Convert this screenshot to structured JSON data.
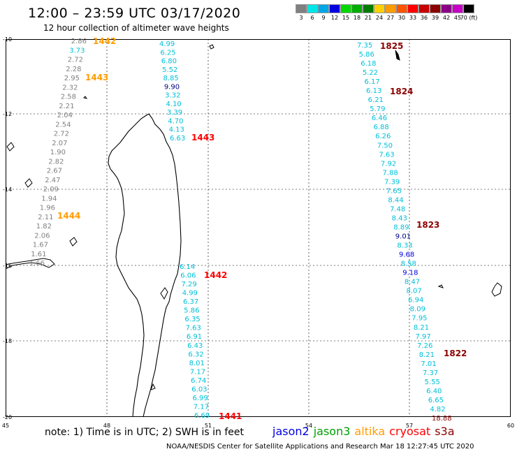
{
  "header": {
    "title": "12:00 – 23:59 UTC 03/17/2020",
    "subtitle": "12 hour collection of altimeter wave heights"
  },
  "color_scale": {
    "labels": [
      "3",
      "6",
      "9",
      "12",
      "15",
      "18",
      "21",
      "24",
      "27",
      "30",
      "33",
      "36",
      "39",
      "42",
      "45",
      "70 (ft)"
    ],
    "colors": [
      "#808080",
      "#00e5e5",
      "#00a6e8",
      "#0000e0",
      "#00d800",
      "#00ae00",
      "#007d00",
      "#ffd000",
      "#ff9c00",
      "#ff5400",
      "#ff0000",
      "#c80000",
      "#8c0000",
      "#8c0088",
      "#c800c8",
      "#000000"
    ]
  },
  "map": {
    "lon_ticks": [
      "45",
      "48",
      "51",
      "54",
      "57",
      "60"
    ],
    "lat_ticks": [
      "-10",
      "-12",
      "-14",
      "-16",
      "-18",
      "-20"
    ]
  },
  "tracks": [
    {
      "id": "west",
      "points": [
        {
          "v": "2.86",
          "c": "#808080"
        },
        {
          "v": "3.73",
          "c": "#00c0d8"
        },
        {
          "v": "2.72",
          "c": "#808080"
        },
        {
          "v": "2.28",
          "c": "#808080"
        },
        {
          "v": "2.95",
          "c": "#808080"
        },
        {
          "v": "2.32",
          "c": "#808080"
        },
        {
          "v": "2.58",
          "c": "#808080"
        },
        {
          "v": "2.21",
          "c": "#808080"
        },
        {
          "v": "2.04",
          "c": "#808080"
        },
        {
          "v": "2.54",
          "c": "#808080"
        },
        {
          "v": "2.72",
          "c": "#808080"
        },
        {
          "v": "2.07",
          "c": "#808080"
        },
        {
          "v": "1.90",
          "c": "#808080"
        },
        {
          "v": "2.82",
          "c": "#808080"
        },
        {
          "v": "2.67",
          "c": "#808080"
        },
        {
          "v": "2.47",
          "c": "#808080"
        },
        {
          "v": "2.09",
          "c": "#808080"
        },
        {
          "v": "1.94",
          "c": "#808080"
        },
        {
          "v": "1.96",
          "c": "#808080"
        },
        {
          "v": "2.11",
          "c": "#808080"
        },
        {
          "v": "1.82",
          "c": "#808080"
        },
        {
          "v": "2.06",
          "c": "#808080"
        },
        {
          "v": "1.67",
          "c": "#808080"
        },
        {
          "v": "1.61",
          "c": "#808080"
        },
        {
          "v": "1.66",
          "c": "#808080"
        }
      ]
    },
    {
      "id": "north-mid",
      "points": [
        {
          "v": "4.99",
          "c": "#00c0d8"
        },
        {
          "v": "6.25",
          "c": "#00c0d8"
        },
        {
          "v": "6.80",
          "c": "#00c0d8"
        },
        {
          "v": "5.52",
          "c": "#00c0d8"
        },
        {
          "v": "8.85",
          "c": "#00c0d8"
        },
        {
          "v": "9.90",
          "c": "#000080"
        },
        {
          "v": "3.32",
          "c": "#00c0d8"
        },
        {
          "v": "4.10",
          "c": "#00c0d8"
        },
        {
          "v": "3.39",
          "c": "#00c0d8"
        },
        {
          "v": "4.70",
          "c": "#00c0d8"
        },
        {
          "v": "4.13",
          "c": "#00c0d8"
        },
        {
          "v": "6.63",
          "c": "#00c0d8"
        }
      ]
    },
    {
      "id": "south-mid",
      "points": [
        {
          "v": "6.14",
          "c": "#00c0d8"
        },
        {
          "v": "6.06",
          "c": "#00c0d8"
        },
        {
          "v": "7.29",
          "c": "#00c0d8"
        },
        {
          "v": "4.99",
          "c": "#00c0d8"
        },
        {
          "v": "6.37",
          "c": "#00c0d8"
        },
        {
          "v": "5.86",
          "c": "#00c0d8"
        },
        {
          "v": "6.35",
          "c": "#00c0d8"
        },
        {
          "v": "7.63",
          "c": "#00c0d8"
        },
        {
          "v": "6.91",
          "c": "#00c0d8"
        },
        {
          "v": "6.43",
          "c": "#00c0d8"
        },
        {
          "v": "6.32",
          "c": "#00c0d8"
        },
        {
          "v": "8.01",
          "c": "#00c0d8"
        },
        {
          "v": "7.17",
          "c": "#00c0d8"
        },
        {
          "v": "6.74",
          "c": "#00c0d8"
        },
        {
          "v": "6.03",
          "c": "#00c0d8"
        },
        {
          "v": "6.99",
          "c": "#00c0d8"
        },
        {
          "v": "7.17",
          "c": "#00c0d8"
        },
        {
          "v": "6.69",
          "c": "#00c0d8"
        }
      ]
    },
    {
      "id": "east",
      "points": [
        {
          "v": "7.35",
          "c": "#00c0d8"
        },
        {
          "v": "5.86",
          "c": "#00c0d8"
        },
        {
          "v": "6.18",
          "c": "#00c0d8"
        },
        {
          "v": "5.22",
          "c": "#00c0d8"
        },
        {
          "v": "6.17",
          "c": "#00c0d8"
        },
        {
          "v": "6.13",
          "c": "#00c0d8"
        },
        {
          "v": "6.21",
          "c": "#00c0d8"
        },
        {
          "v": "5.79",
          "c": "#00c0d8"
        },
        {
          "v": "6.46",
          "c": "#00c0d8"
        },
        {
          "v": "6.88",
          "c": "#00c0d8"
        },
        {
          "v": "6.26",
          "c": "#00c0d8"
        },
        {
          "v": "7.50",
          "c": "#00c0d8"
        },
        {
          "v": "7.63",
          "c": "#00c0d8"
        },
        {
          "v": "7.92",
          "c": "#00c0d8"
        },
        {
          "v": "7.88",
          "c": "#00c0d8"
        },
        {
          "v": "7.39",
          "c": "#00c0d8"
        },
        {
          "v": "7.65",
          "c": "#00c0d8"
        },
        {
          "v": "8.44",
          "c": "#00c0d8"
        },
        {
          "v": "7.48",
          "c": "#00c0d8"
        },
        {
          "v": "8.43",
          "c": "#00c0d8"
        },
        {
          "v": "8.89",
          "c": "#00c0d8"
        },
        {
          "v": "9.01",
          "c": "#000080"
        },
        {
          "v": "8.33",
          "c": "#00c0d8"
        },
        {
          "v": "9.68",
          "c": "#0000e0"
        },
        {
          "v": "8.58",
          "c": "#00c0d8"
        },
        {
          "v": "9.18",
          "c": "#0000e0"
        },
        {
          "v": "8.47",
          "c": "#00c0d8"
        },
        {
          "v": "8.07",
          "c": "#00c0d8"
        },
        {
          "v": "6.94",
          "c": "#00c0d8"
        },
        {
          "v": "8.09",
          "c": "#00c0d8"
        },
        {
          "v": "7.95",
          "c": "#00c0d8"
        },
        {
          "v": "8.21",
          "c": "#00c0d8"
        },
        {
          "v": "7.97",
          "c": "#00c0d8"
        },
        {
          "v": "7.26",
          "c": "#00c0d8"
        },
        {
          "v": "8.21",
          "c": "#00c0d8"
        },
        {
          "v": "7.01",
          "c": "#00c0d8"
        },
        {
          "v": "7.37",
          "c": "#00c0d8"
        },
        {
          "v": "5.55",
          "c": "#00c0d8"
        },
        {
          "v": "6.40",
          "c": "#00c0d8"
        },
        {
          "v": "6.65",
          "c": "#00c0d8"
        },
        {
          "v": "4.82",
          "c": "#00c0d8"
        },
        {
          "v": "18.88",
          "c": "#8c0000"
        }
      ]
    }
  ],
  "time_labels": [
    {
      "t": "1442",
      "c": "#ff9c00"
    },
    {
      "t": "1443",
      "c": "#ff9c00"
    },
    {
      "t": "1444",
      "c": "#ff9c00"
    },
    {
      "t": "1443",
      "c": "#ff0000"
    },
    {
      "t": "1442",
      "c": "#ff0000"
    },
    {
      "t": "1441",
      "c": "#ff0000"
    },
    {
      "t": "1825",
      "c": "#8c0000"
    },
    {
      "t": "1824",
      "c": "#8c0000"
    },
    {
      "t": "1823",
      "c": "#8c0000"
    },
    {
      "t": "1822",
      "c": "#8c0000"
    }
  ],
  "footer": {
    "note": "note:  1) Time is in UTC; 2) SWH is in feet",
    "satellites": [
      {
        "name": "jason2",
        "color": "#0000e0"
      },
      {
        "name": "jason3",
        "color": "#00a000"
      },
      {
        "name": "altika",
        "color": "#ff9c00"
      },
      {
        "name": "cryosat",
        "color": "#ff0000"
      },
      {
        "name": "s3a",
        "color": "#8c0000"
      }
    ],
    "credit": "NOAA/NESDIS Center for Satellite Applications and Research     Mar 18 12:27:45 UTC 2020"
  }
}
